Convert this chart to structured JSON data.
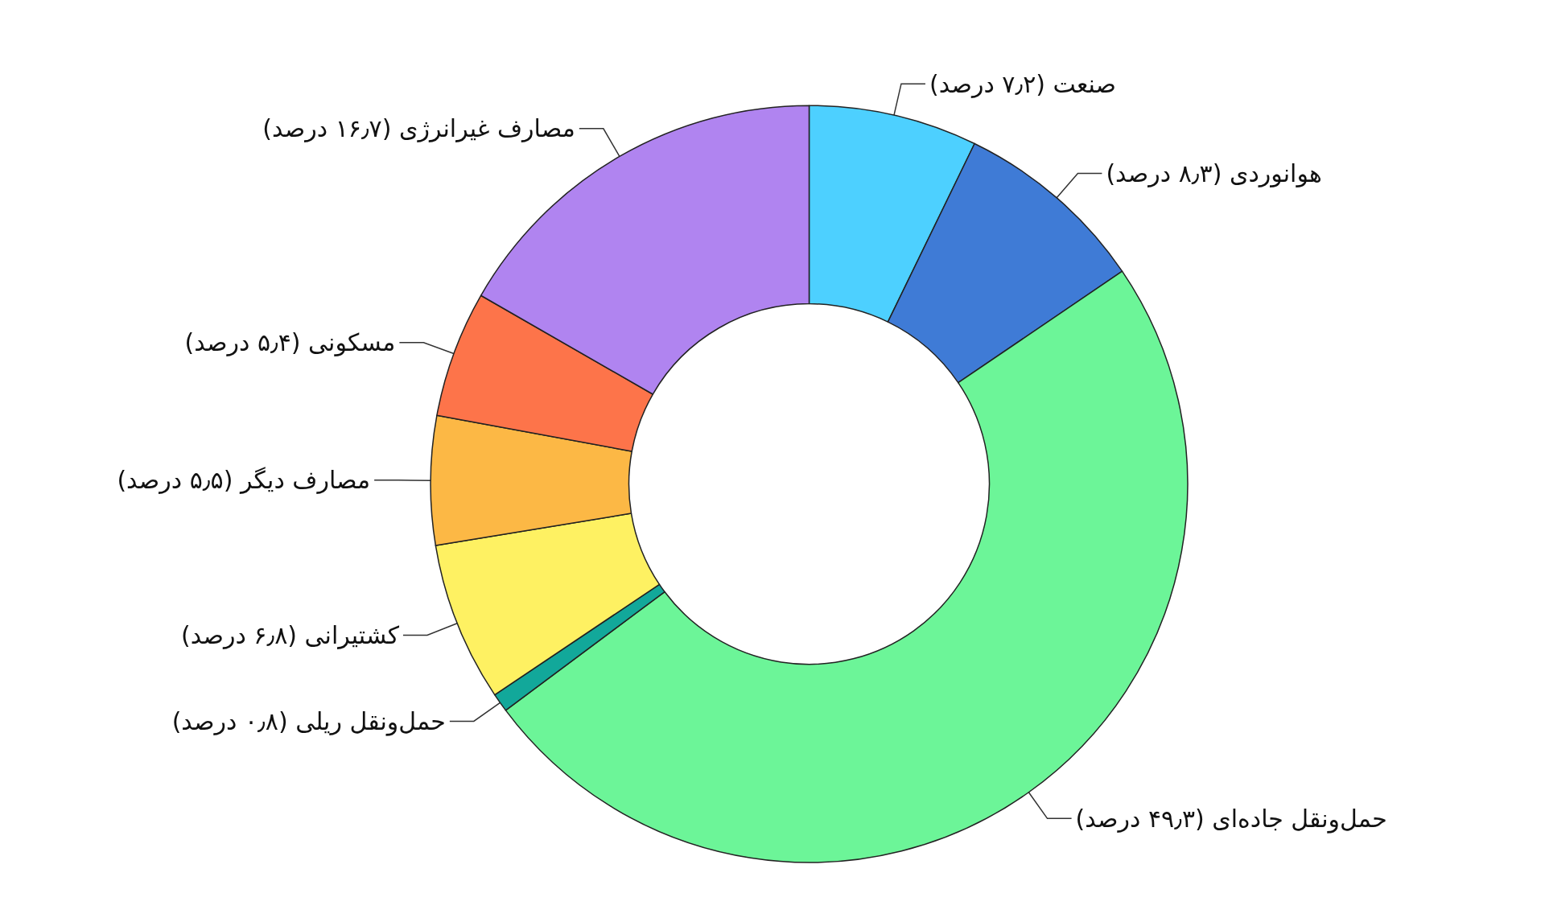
{
  "chart_data": {
    "type": "donut",
    "categories": [
      "صنعت",
      "هوانوردی",
      "حمل‌ونقل جاده‌ای",
      "حمل‌ونقل ریلی",
      "کشتیرانی",
      "مصارف دیگر",
      "مسکونی",
      "مصارف غیرانرژی"
    ],
    "values": [
      7.2,
      8.3,
      49.3,
      0.8,
      6.8,
      5.5,
      5.4,
      16.7
    ],
    "value_labels": [
      "(۷٫۲ درصد)",
      "(۸٫۳ درصد)",
      "(۴۹٫۳ درصد)",
      "(۰٫۸ درصد)",
      "(۶٫۸ درصد)",
      "(۵٫۵ درصد)",
      "(۵٫۴ درصد)",
      "(۱۶٫۷ درصد)"
    ],
    "colors": [
      "#4dd0ff",
      "#3f7bd6",
      "#6cf598",
      "#12a89a",
      "#fef162",
      "#fcb845",
      "#fd744a",
      "#b084f0"
    ],
    "legend": false
  }
}
